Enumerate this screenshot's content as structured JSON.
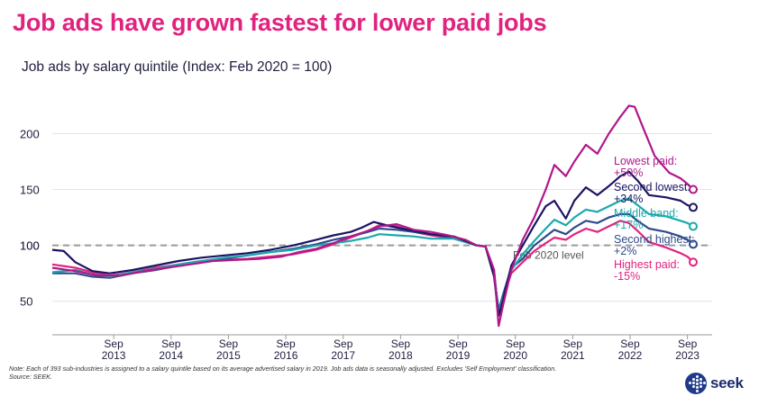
{
  "header": {
    "title": "Job ads have grown fastest for lower paid jobs",
    "subtitle": "Job ads by salary quintile (Index: Feb 2020 = 100)"
  },
  "footer": {
    "note": "Note: Each of 393 sub-industries is assigned to a salary quintile based on its average advertised salary in 2019. Job ads data is seasonally adjusted. Excludes 'Self Employment' classification.",
    "source": "Source: SEEK.",
    "logo_text": "seek"
  },
  "chart_data": {
    "type": "line",
    "title": "Job ads have grown fastest for lower paid jobs",
    "subtitle": "Job ads by salary quintile (Index: Feb 2020 = 100)",
    "xlabel": "",
    "ylabel": "",
    "ylim": [
      20,
      235
    ],
    "xlim": [
      2012.6,
      2024.1
    ],
    "yticks": [
      50,
      100,
      150,
      200
    ],
    "grid": true,
    "x_ticks": [
      {
        "x": 2013.67,
        "month": "Sep",
        "year": "2013"
      },
      {
        "x": 2014.67,
        "month": "Sep",
        "year": "2014"
      },
      {
        "x": 2015.67,
        "month": "Sep",
        "year": "2015"
      },
      {
        "x": 2016.67,
        "month": "Sep",
        "year": "2016"
      },
      {
        "x": 2017.67,
        "month": "Sep",
        "year": "2017"
      },
      {
        "x": 2018.67,
        "month": "Sep",
        "year": "2018"
      },
      {
        "x": 2019.67,
        "month": "Sep",
        "year": "2019"
      },
      {
        "x": 2020.67,
        "month": "Sep",
        "year": "2020"
      },
      {
        "x": 2021.67,
        "month": "Sep",
        "year": "2021"
      },
      {
        "x": 2022.67,
        "month": "Sep",
        "year": "2022"
      },
      {
        "x": 2023.67,
        "month": "Sep",
        "year": "2023"
      }
    ],
    "reference_line": {
      "y": 100,
      "label": "Feb 2020 level"
    },
    "series": [
      {
        "name": "Lowest paid",
        "color": "#b0178a",
        "label": [
          "Lowest paid:",
          "+50%"
        ],
        "points": [
          [
            2012.6,
            80
          ],
          [
            2013.0,
            77
          ],
          [
            2013.4,
            73
          ],
          [
            2013.8,
            73
          ],
          [
            2014.2,
            77
          ],
          [
            2014.6,
            80
          ],
          [
            2015.0,
            83
          ],
          [
            2015.4,
            86
          ],
          [
            2015.8,
            87
          ],
          [
            2016.2,
            88
          ],
          [
            2016.6,
            90
          ],
          [
            2016.9,
            94
          ],
          [
            2017.2,
            97
          ],
          [
            2017.5,
            102
          ],
          [
            2017.8,
            108
          ],
          [
            2018.1,
            113
          ],
          [
            2018.3,
            117
          ],
          [
            2018.6,
            119
          ],
          [
            2018.9,
            114
          ],
          [
            2019.2,
            112
          ],
          [
            2019.5,
            109
          ],
          [
            2019.8,
            105
          ],
          [
            2020.0,
            100
          ],
          [
            2020.15,
            99
          ],
          [
            2020.3,
            78
          ],
          [
            2020.38,
            28
          ],
          [
            2020.45,
            45
          ],
          [
            2020.6,
            78
          ],
          [
            2020.8,
            105
          ],
          [
            2021.0,
            125
          ],
          [
            2021.2,
            150
          ],
          [
            2021.35,
            172
          ],
          [
            2021.55,
            162
          ],
          [
            2021.7,
            175
          ],
          [
            2021.9,
            190
          ],
          [
            2022.1,
            182
          ],
          [
            2022.3,
            200
          ],
          [
            2022.5,
            215
          ],
          [
            2022.65,
            225
          ],
          [
            2022.75,
            224
          ],
          [
            2022.9,
            205
          ],
          [
            2023.1,
            180
          ],
          [
            2023.35,
            165
          ],
          [
            2023.55,
            160
          ],
          [
            2023.67,
            155
          ],
          [
            2023.77,
            150
          ]
        ]
      },
      {
        "name": "Second lowest",
        "color": "#1b1464",
        "label": [
          "Second lowest:",
          "+34%"
        ],
        "points": [
          [
            2012.6,
            96
          ],
          [
            2012.8,
            95
          ],
          [
            2013.0,
            85
          ],
          [
            2013.3,
            77
          ],
          [
            2013.6,
            75
          ],
          [
            2014.0,
            78
          ],
          [
            2014.4,
            82
          ],
          [
            2014.8,
            86
          ],
          [
            2015.2,
            89
          ],
          [
            2015.6,
            91
          ],
          [
            2016.0,
            93
          ],
          [
            2016.4,
            96
          ],
          [
            2016.8,
            100
          ],
          [
            2017.2,
            105
          ],
          [
            2017.5,
            109
          ],
          [
            2017.8,
            112
          ],
          [
            2018.0,
            116
          ],
          [
            2018.2,
            121
          ],
          [
            2018.5,
            117
          ],
          [
            2018.8,
            114
          ],
          [
            2019.2,
            110
          ],
          [
            2019.6,
            108
          ],
          [
            2020.0,
            100
          ],
          [
            2020.15,
            99
          ],
          [
            2020.3,
            72
          ],
          [
            2020.38,
            37
          ],
          [
            2020.45,
            50
          ],
          [
            2020.6,
            82
          ],
          [
            2020.8,
            100
          ],
          [
            2021.0,
            118
          ],
          [
            2021.2,
            135
          ],
          [
            2021.35,
            140
          ],
          [
            2021.55,
            124
          ],
          [
            2021.7,
            140
          ],
          [
            2021.9,
            152
          ],
          [
            2022.1,
            145
          ],
          [
            2022.3,
            153
          ],
          [
            2022.5,
            162
          ],
          [
            2022.65,
            166
          ],
          [
            2022.8,
            158
          ],
          [
            2023.0,
            145
          ],
          [
            2023.3,
            143
          ],
          [
            2023.55,
            140
          ],
          [
            2023.67,
            136
          ],
          [
            2023.77,
            134
          ]
        ]
      },
      {
        "name": "Middle band",
        "color": "#1aa9ac",
        "label": [
          "Middle band:",
          "+17%"
        ],
        "points": [
          [
            2012.6,
            76
          ],
          [
            2013.0,
            78
          ],
          [
            2013.3,
            74
          ],
          [
            2013.6,
            72
          ],
          [
            2014.0,
            76
          ],
          [
            2014.4,
            79
          ],
          [
            2014.8,
            83
          ],
          [
            2015.2,
            86
          ],
          [
            2015.6,
            89
          ],
          [
            2016.0,
            91
          ],
          [
            2016.4,
            94
          ],
          [
            2016.8,
            96
          ],
          [
            2017.2,
            100
          ],
          [
            2017.5,
            102
          ],
          [
            2017.8,
            104
          ],
          [
            2018.1,
            107
          ],
          [
            2018.3,
            110
          ],
          [
            2018.6,
            109
          ],
          [
            2018.9,
            108
          ],
          [
            2019.2,
            106
          ],
          [
            2019.6,
            106
          ],
          [
            2020.0,
            100
          ],
          [
            2020.15,
            99
          ],
          [
            2020.3,
            75
          ],
          [
            2020.38,
            40
          ],
          [
            2020.45,
            52
          ],
          [
            2020.6,
            78
          ],
          [
            2020.8,
            92
          ],
          [
            2021.0,
            104
          ],
          [
            2021.2,
            115
          ],
          [
            2021.35,
            123
          ],
          [
            2021.55,
            118
          ],
          [
            2021.7,
            125
          ],
          [
            2021.9,
            132
          ],
          [
            2022.1,
            130
          ],
          [
            2022.3,
            135
          ],
          [
            2022.5,
            140
          ],
          [
            2022.65,
            142
          ],
          [
            2022.8,
            136
          ],
          [
            2023.0,
            128
          ],
          [
            2023.3,
            126
          ],
          [
            2023.55,
            122
          ],
          [
            2023.67,
            120
          ],
          [
            2023.77,
            117
          ]
        ]
      },
      {
        "name": "Second highest",
        "color": "#2e4a8a",
        "label": [
          "Second highest:",
          "+2%"
        ],
        "points": [
          [
            2012.6,
            75
          ],
          [
            2013.0,
            75
          ],
          [
            2013.3,
            72
          ],
          [
            2013.6,
            71
          ],
          [
            2014.0,
            75
          ],
          [
            2014.4,
            78
          ],
          [
            2014.8,
            82
          ],
          [
            2015.2,
            85
          ],
          [
            2015.6,
            88
          ],
          [
            2016.0,
            91
          ],
          [
            2016.4,
            94
          ],
          [
            2016.8,
            97
          ],
          [
            2017.2,
            101
          ],
          [
            2017.5,
            105
          ],
          [
            2017.8,
            108
          ],
          [
            2018.1,
            112
          ],
          [
            2018.3,
            115
          ],
          [
            2018.6,
            114
          ],
          [
            2018.9,
            112
          ],
          [
            2019.2,
            110
          ],
          [
            2019.6,
            107
          ],
          [
            2020.0,
            100
          ],
          [
            2020.15,
            99
          ],
          [
            2020.3,
            74
          ],
          [
            2020.38,
            42
          ],
          [
            2020.45,
            55
          ],
          [
            2020.6,
            80
          ],
          [
            2020.8,
            88
          ],
          [
            2021.0,
            100
          ],
          [
            2021.2,
            108
          ],
          [
            2021.35,
            114
          ],
          [
            2021.55,
            110
          ],
          [
            2021.7,
            116
          ],
          [
            2021.9,
            122
          ],
          [
            2022.1,
            120
          ],
          [
            2022.3,
            125
          ],
          [
            2022.5,
            128
          ],
          [
            2022.65,
            128
          ],
          [
            2022.8,
            122
          ],
          [
            2023.0,
            115
          ],
          [
            2023.3,
            112
          ],
          [
            2023.55,
            108
          ],
          [
            2023.67,
            105
          ],
          [
            2023.77,
            101
          ]
        ]
      },
      {
        "name": "Highest paid",
        "color": "#e0237f",
        "label": [
          "Highest paid:",
          "-15%"
        ],
        "points": [
          [
            2012.6,
            83
          ],
          [
            2013.0,
            80
          ],
          [
            2013.3,
            76
          ],
          [
            2013.6,
            73
          ],
          [
            2014.0,
            76
          ],
          [
            2014.4,
            80
          ],
          [
            2014.8,
            83
          ],
          [
            2015.2,
            86
          ],
          [
            2015.6,
            87
          ],
          [
            2016.0,
            88
          ],
          [
            2016.4,
            90
          ],
          [
            2016.8,
            92
          ],
          [
            2017.2,
            96
          ],
          [
            2017.5,
            101
          ],
          [
            2017.8,
            107
          ],
          [
            2018.1,
            113
          ],
          [
            2018.3,
            118
          ],
          [
            2018.6,
            117
          ],
          [
            2018.9,
            112
          ],
          [
            2019.2,
            109
          ],
          [
            2019.6,
            106
          ],
          [
            2020.0,
            100
          ],
          [
            2020.15,
            99
          ],
          [
            2020.3,
            78
          ],
          [
            2020.38,
            37
          ],
          [
            2020.45,
            52
          ],
          [
            2020.6,
            75
          ],
          [
            2020.8,
            85
          ],
          [
            2021.0,
            95
          ],
          [
            2021.2,
            102
          ],
          [
            2021.35,
            107
          ],
          [
            2021.55,
            105
          ],
          [
            2021.7,
            110
          ],
          [
            2021.9,
            115
          ],
          [
            2022.1,
            112
          ],
          [
            2022.3,
            117
          ],
          [
            2022.5,
            122
          ],
          [
            2022.65,
            120
          ],
          [
            2022.8,
            113
          ],
          [
            2023.0,
            103
          ],
          [
            2023.3,
            98
          ],
          [
            2023.55,
            93
          ],
          [
            2023.67,
            90
          ],
          [
            2023.77,
            85
          ]
        ]
      }
    ]
  }
}
